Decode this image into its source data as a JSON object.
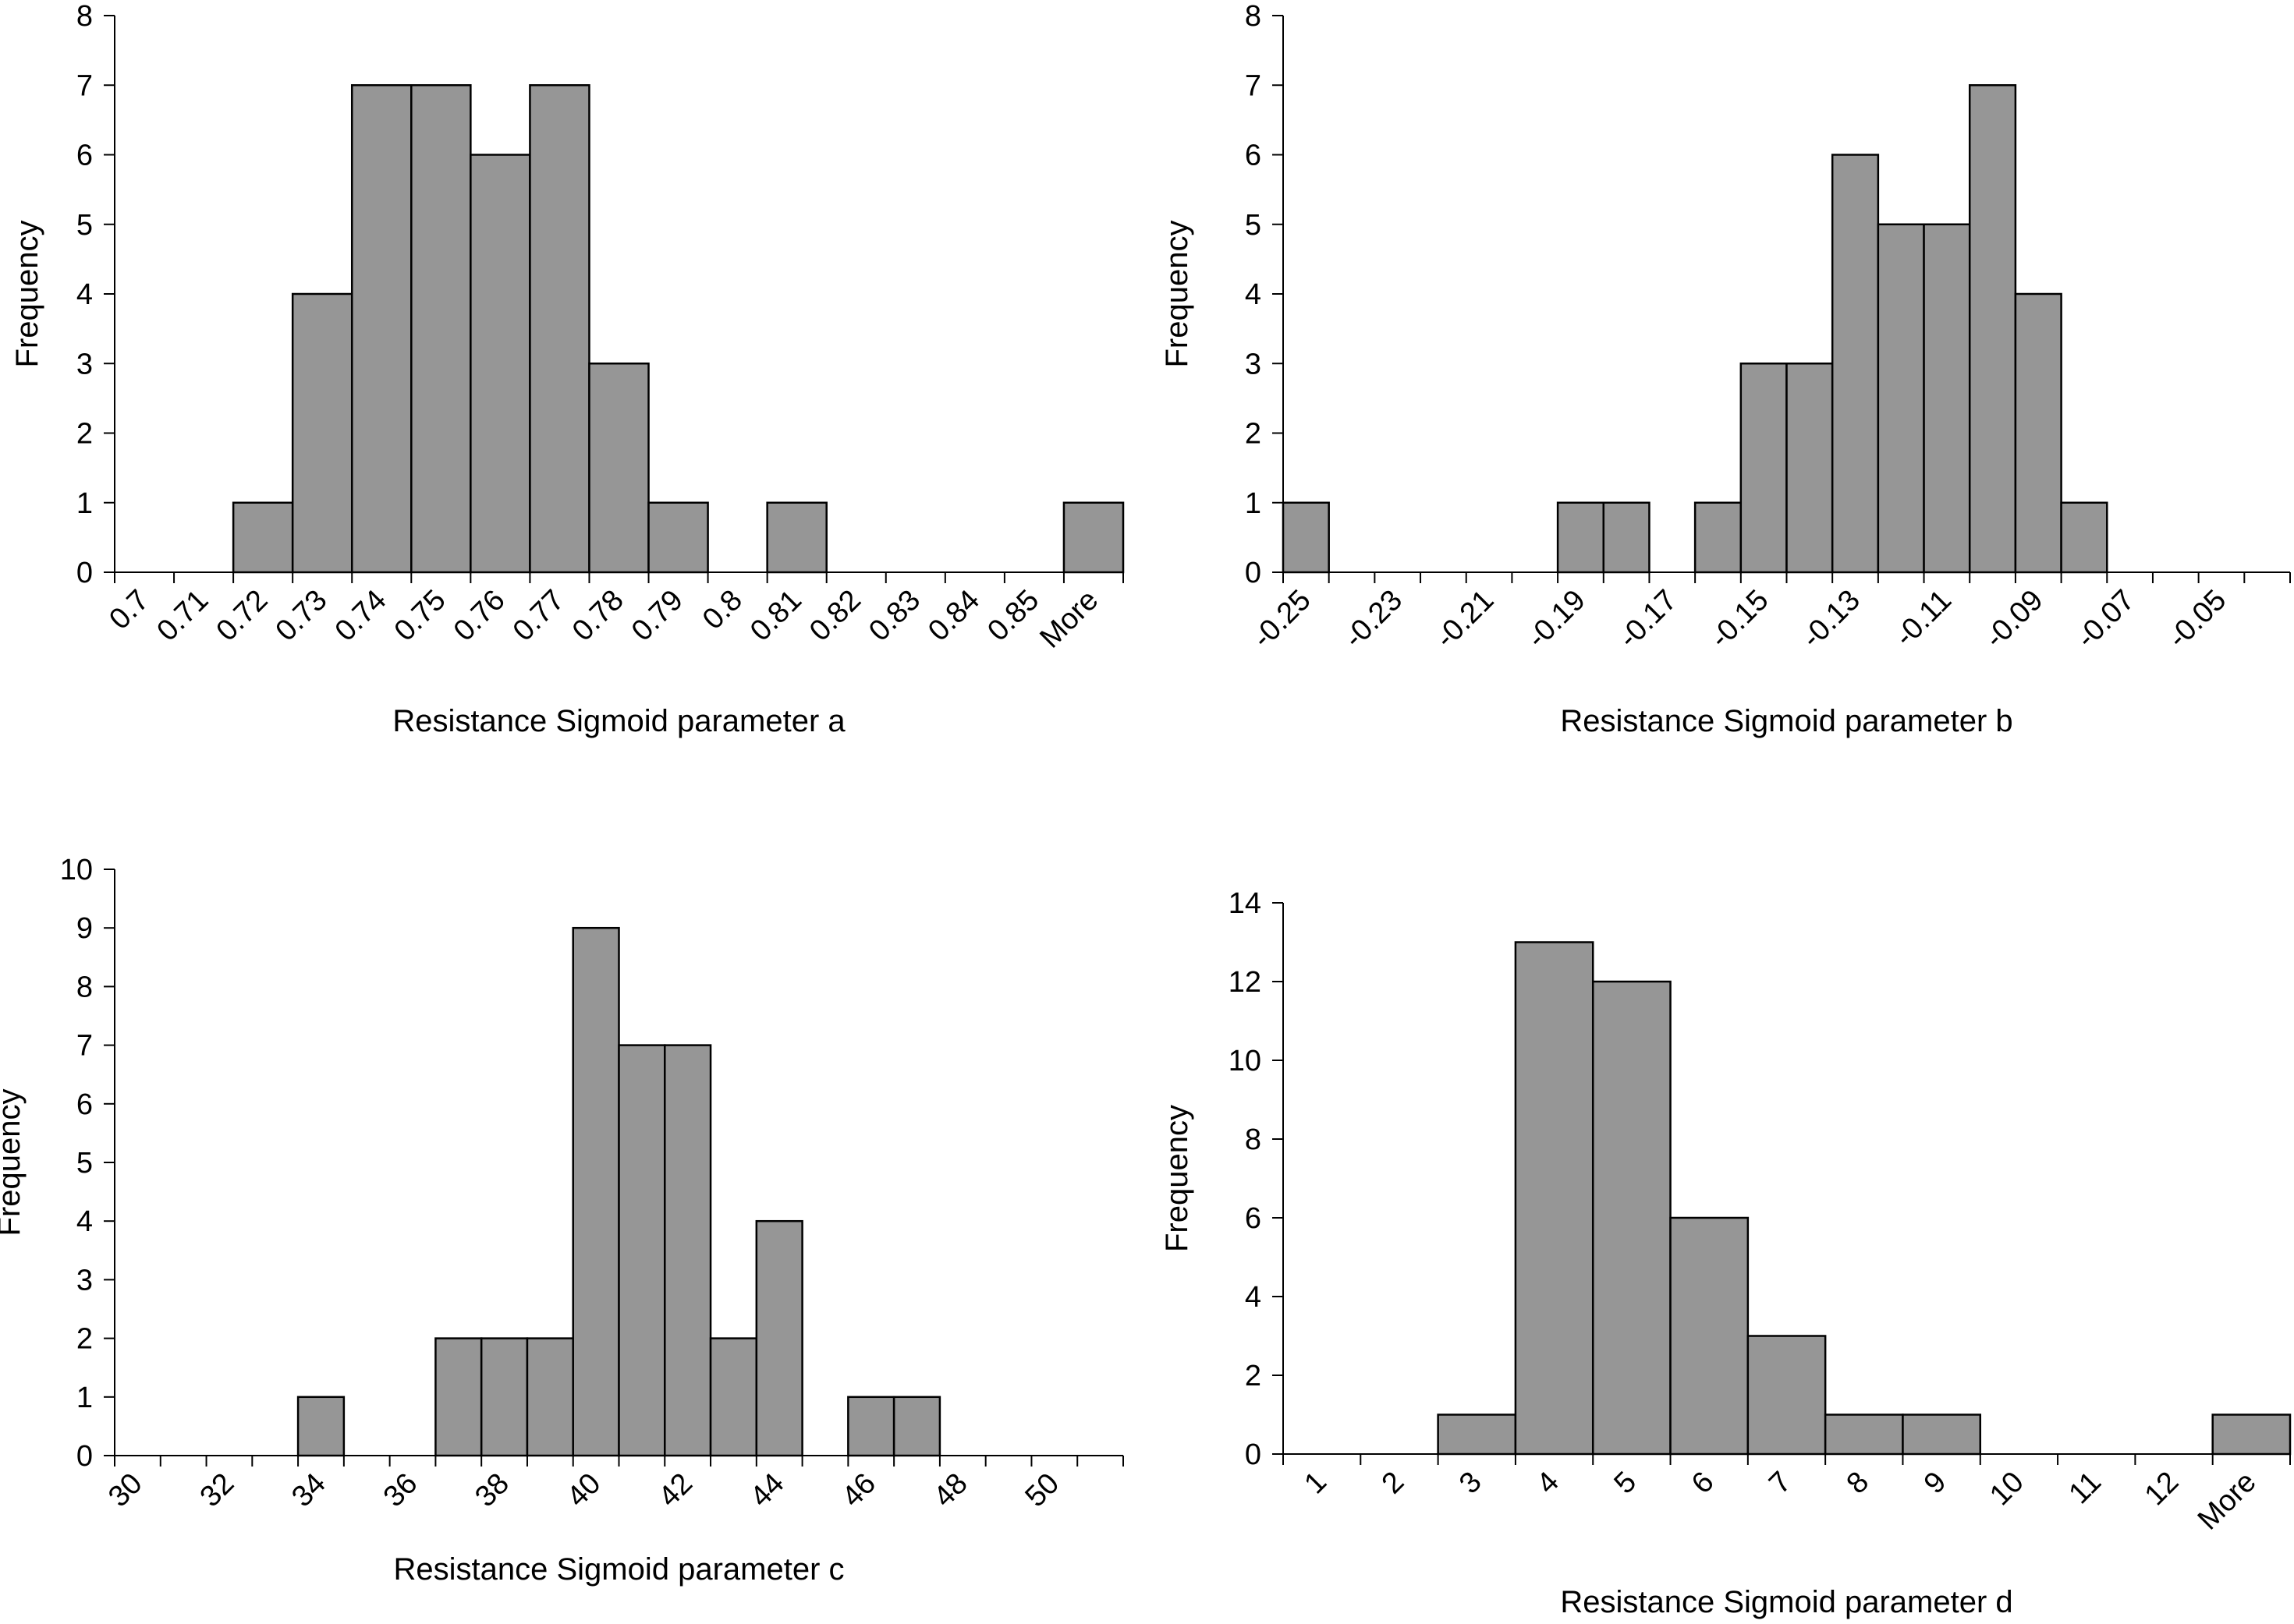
{
  "colors": {
    "bar_fill": "#969696",
    "bar_stroke": "#000000",
    "axis": "#000000",
    "background": "#ffffff"
  },
  "chart_data": [
    {
      "type": "bar",
      "subtype": "histogram",
      "title": "",
      "xlabel": "Resistance Sigmoid parameter a",
      "ylabel": "Frequency",
      "ylim": [
        0,
        8
      ],
      "yticks": [
        0,
        1,
        2,
        3,
        4,
        5,
        6,
        7,
        8
      ],
      "xtick_labels": [
        "0.7",
        "0.71",
        "0.72",
        "0.73",
        "0.74",
        "0.75",
        "0.76",
        "0.77",
        "0.78",
        "0.79",
        "0.8",
        "0.81",
        "0.82",
        "0.83",
        "0.84",
        "0.85",
        "More"
      ],
      "values": [
        0,
        0,
        1,
        4,
        7,
        7,
        6,
        7,
        3,
        1,
        0,
        1,
        0,
        0,
        0,
        0,
        1
      ],
      "legend": "none"
    },
    {
      "type": "bar",
      "subtype": "histogram",
      "title": "",
      "xlabel": "Resistance Sigmoid parameter b",
      "ylabel": "Frequency",
      "ylim": [
        0,
        8
      ],
      "yticks": [
        0,
        1,
        2,
        3,
        4,
        5,
        6,
        7,
        8
      ],
      "xtick_labels": [
        "-0.25",
        "",
        "-0.23",
        "",
        "-0.21",
        "",
        "-0.19",
        "",
        "-0.17",
        "",
        "-0.15",
        "",
        "-0.13",
        "",
        "-0.11",
        "",
        "-0.09",
        "",
        "-0.07",
        "",
        "-0.05",
        ""
      ],
      "values": [
        1,
        0,
        0,
        0,
        0,
        0,
        1,
        1,
        0,
        1,
        3,
        3,
        6,
        5,
        5,
        7,
        4,
        1,
        0,
        0,
        0,
        0
      ],
      "legend": "none"
    },
    {
      "type": "bar",
      "subtype": "histogram",
      "title": "",
      "xlabel": "Resistance Sigmoid parameter c",
      "ylabel": "Frequency",
      "ylim": [
        0,
        10
      ],
      "yticks": [
        0,
        1,
        2,
        3,
        4,
        5,
        6,
        7,
        8,
        9,
        10
      ],
      "xtick_labels": [
        "30",
        "",
        "32",
        "",
        "34",
        "",
        "36",
        "",
        "38",
        "",
        "40",
        "",
        "42",
        "",
        "44",
        "",
        "46",
        "",
        "48",
        "",
        "50",
        ""
      ],
      "values": [
        0,
        0,
        0,
        0,
        1,
        0,
        0,
        2,
        2,
        2,
        9,
        7,
        7,
        2,
        4,
        0,
        1,
        1,
        0,
        0,
        0,
        0
      ],
      "legend": "none"
    },
    {
      "type": "bar",
      "subtype": "histogram",
      "title": "",
      "xlabel": "Resistance Sigmoid parameter d",
      "ylabel": "Frequency",
      "ylim": [
        0,
        14
      ],
      "yticks": [
        0,
        2,
        4,
        6,
        8,
        10,
        12,
        14
      ],
      "xtick_labels": [
        "1",
        "2",
        "3",
        "4",
        "5",
        "6",
        "7",
        "8",
        "9",
        "10",
        "11",
        "12",
        "More"
      ],
      "values": [
        0,
        0,
        1,
        13,
        12,
        6,
        3,
        1,
        1,
        0,
        0,
        0,
        1
      ],
      "legend": "none"
    }
  ]
}
